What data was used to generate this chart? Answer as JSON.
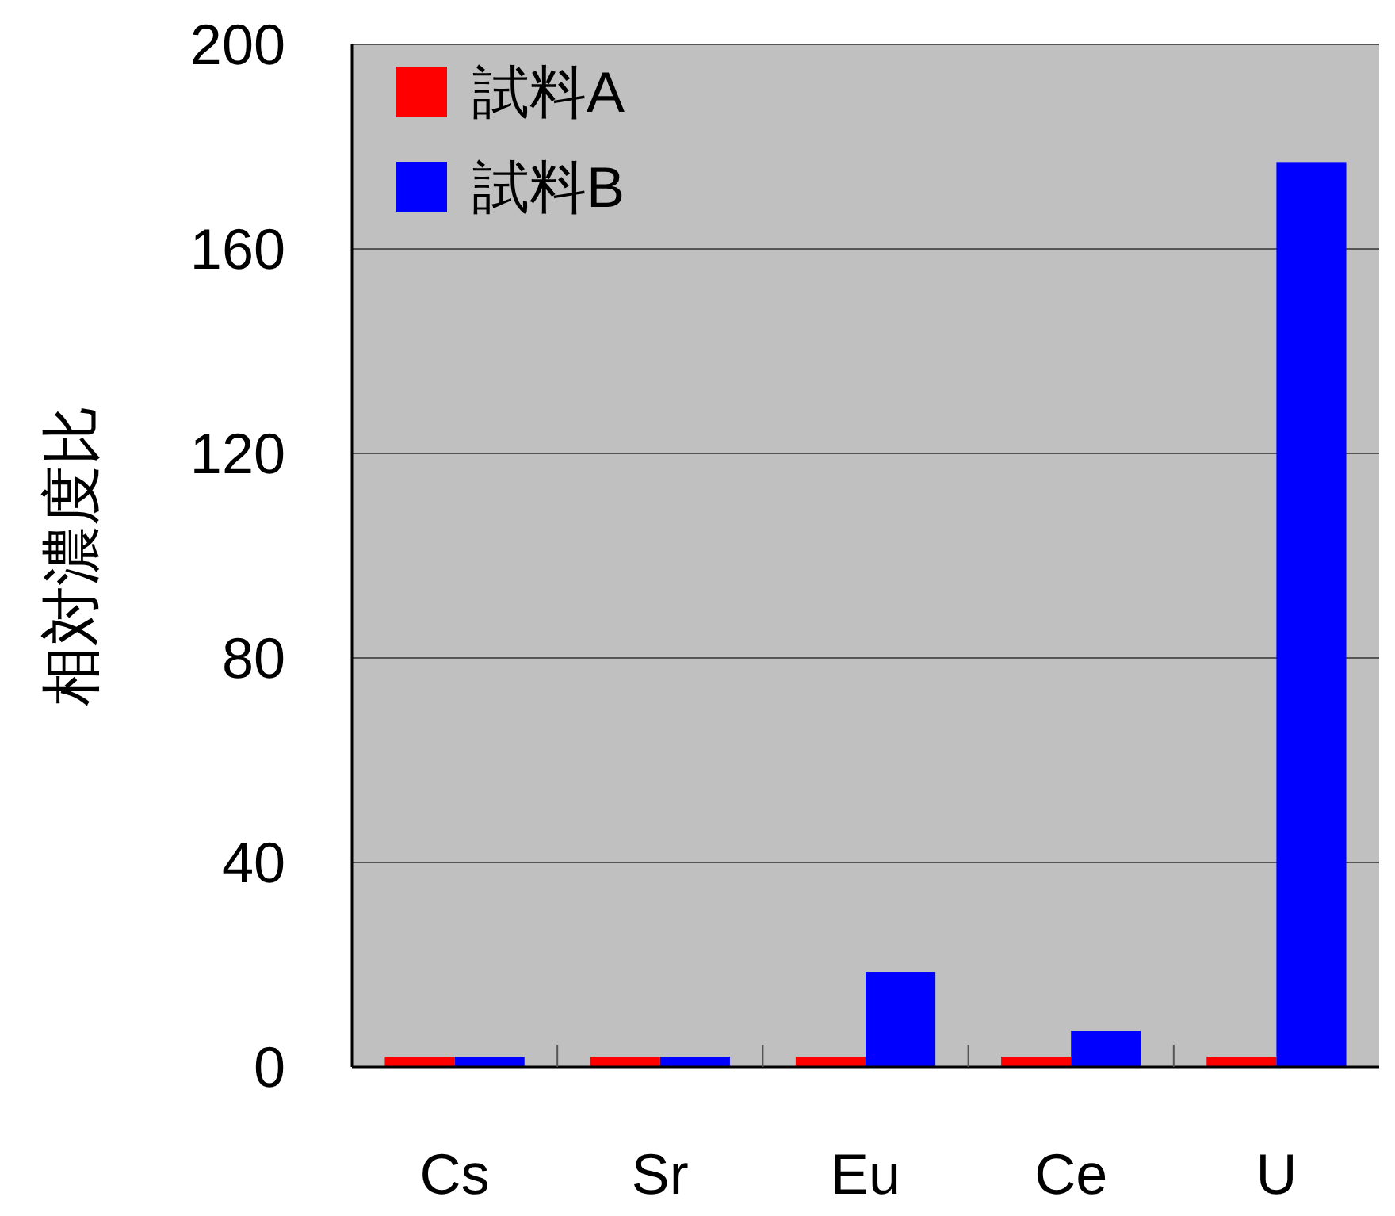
{
  "chart_data": {
    "type": "bar",
    "ylabel": "相対濃度比",
    "categories": [
      "Cs",
      "Sr",
      "Eu",
      "Ce",
      "U"
    ],
    "series": [
      {
        "name": "試料A",
        "color": "#ff0000",
        "values": [
          2,
          2,
          2,
          2,
          2
        ]
      },
      {
        "name": "試料B",
        "color": "#0000ff",
        "values": [
          2,
          2,
          18.6,
          7.1,
          177
        ]
      }
    ],
    "ylim": [
      0,
      200
    ],
    "yticks": [
      0,
      40,
      80,
      120,
      160,
      200
    ],
    "grid": "y",
    "legend": "top left"
  }
}
